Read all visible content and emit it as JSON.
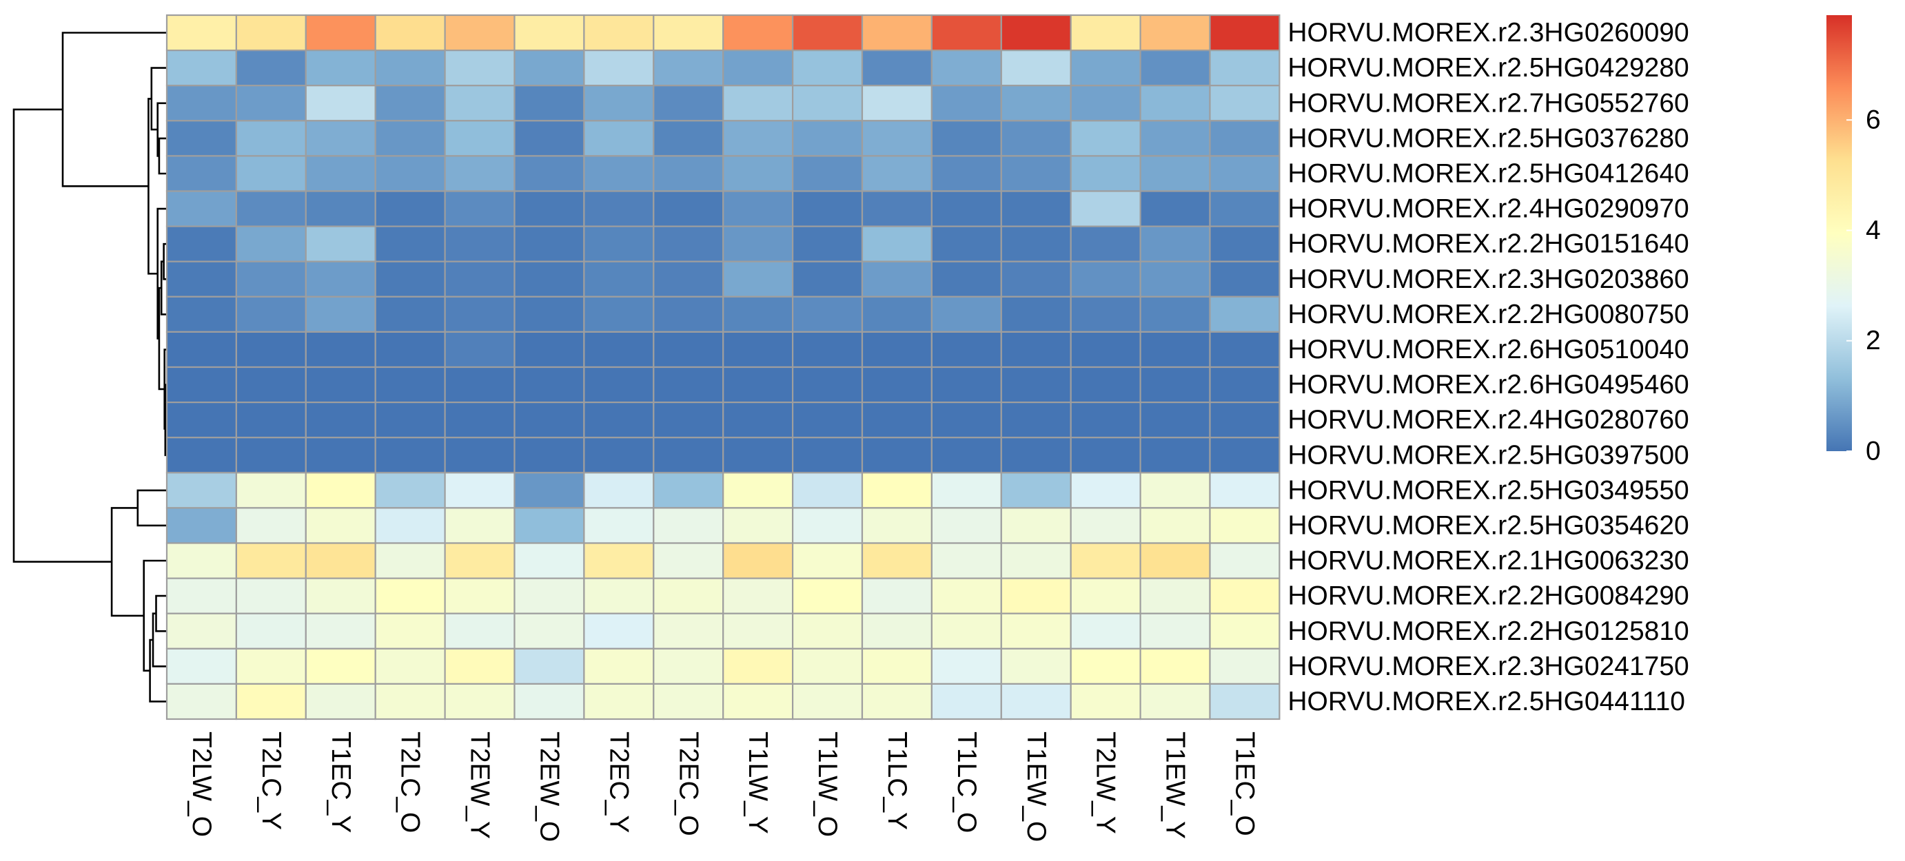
{
  "chart_data": {
    "type": "heatmap",
    "columns": [
      "T2LW_O",
      "T2LC_Y",
      "T1EC_Y",
      "T2LC_O",
      "T2EW_Y",
      "T2EW_O",
      "T2EC_Y",
      "T2EC_O",
      "T1LW_Y",
      "T1LW_O",
      "T1LC_Y",
      "T1LC_O",
      "T1EW_O",
      "T2LW_Y",
      "T1EW_Y",
      "T1EC_O"
    ],
    "rows": [
      "HORVU.MOREX.r2.3HG0260090",
      "HORVU.MOREX.r2.5HG0429280",
      "HORVU.MOREX.r2.7HG0552760",
      "HORVU.MOREX.r2.5HG0376280",
      "HORVU.MOREX.r2.5HG0412640",
      "HORVU.MOREX.r2.4HG0290970",
      "HORVU.MOREX.r2.2HG0151640",
      "HORVU.MOREX.r2.3HG0203860",
      "HORVU.MOREX.r2.2HG0080750",
      "HORVU.MOREX.r2.6HG0510040",
      "HORVU.MOREX.r2.6HG0495460",
      "HORVU.MOREX.r2.4HG0280760",
      "HORVU.MOREX.r2.5HG0397500",
      "HORVU.MOREX.r2.5HG0349550",
      "HORVU.MOREX.r2.5HG0354620",
      "HORVU.MOREX.r2.1HG0063230",
      "HORVU.MOREX.r2.2HG0084290",
      "HORVU.MOREX.r2.2HG0125810",
      "HORVU.MOREX.r2.3HG0241750",
      "HORVU.MOREX.r2.5HG0441110"
    ],
    "values": [
      [
        4.6,
        5.1,
        6.5,
        5.3,
        5.8,
        4.7,
        5.0,
        4.7,
        6.5,
        7.3,
        6.0,
        7.4,
        7.8,
        4.8,
        5.8,
        7.8
      ],
      [
        1.4,
        0.4,
        1.1,
        0.9,
        1.7,
        0.9,
        1.9,
        1.0,
        0.8,
        1.4,
        0.4,
        1.0,
        2.0,
        0.9,
        0.5,
        1.5
      ],
      [
        0.6,
        0.7,
        2.1,
        0.6,
        1.5,
        0.3,
        0.9,
        0.4,
        1.6,
        1.5,
        2.1,
        0.7,
        0.9,
        0.8,
        1.2,
        1.6
      ],
      [
        0.3,
        1.2,
        1.0,
        0.6,
        1.3,
        0.2,
        1.2,
        0.3,
        1.0,
        0.8,
        1.0,
        0.3,
        0.5,
        1.4,
        0.8,
        0.6
      ],
      [
        0.5,
        1.2,
        0.8,
        0.7,
        1.0,
        0.4,
        0.7,
        0.6,
        0.9,
        0.5,
        1.0,
        0.4,
        0.5,
        1.2,
        0.9,
        0.8
      ],
      [
        0.8,
        0.4,
        0.3,
        0.1,
        0.4,
        0.1,
        0.2,
        0.1,
        0.5,
        0.1,
        0.2,
        0.1,
        0.1,
        1.8,
        0.1,
        0.3
      ],
      [
        0.1,
        0.9,
        1.5,
        0.1,
        0.2,
        0.1,
        0.3,
        0.2,
        0.6,
        0.1,
        1.3,
        0.1,
        0.1,
        0.2,
        0.6,
        0.1
      ],
      [
        0.1,
        0.5,
        0.7,
        0.1,
        0.2,
        0.1,
        0.3,
        0.2,
        0.9,
        0.1,
        0.7,
        0.1,
        0.2,
        0.5,
        0.6,
        0.1
      ],
      [
        0.1,
        0.4,
        0.8,
        0.1,
        0.2,
        0.1,
        0.3,
        0.2,
        0.3,
        0.4,
        0.3,
        0.6,
        0.1,
        0.2,
        0.3,
        1.1
      ],
      [
        0.0,
        0.0,
        0.0,
        0.0,
        0.2,
        0.0,
        0.0,
        0.0,
        0.0,
        0.0,
        0.0,
        0.0,
        0.0,
        0.0,
        0.0,
        0.0
      ],
      [
        0.0,
        0.0,
        0.0,
        0.0,
        0.0,
        0.0,
        0.0,
        0.0,
        0.0,
        0.0,
        0.0,
        0.0,
        0.0,
        0.0,
        0.0,
        0.0
      ],
      [
        0.0,
        0.0,
        0.0,
        0.0,
        0.0,
        0.0,
        0.0,
        0.0,
        0.0,
        0.0,
        0.0,
        0.0,
        0.0,
        0.0,
        0.0,
        0.0
      ],
      [
        0.0,
        0.0,
        0.0,
        0.0,
        0.0,
        0.0,
        0.0,
        0.0,
        0.0,
        0.0,
        0.0,
        0.0,
        0.0,
        0.0,
        0.0,
        0.0
      ],
      [
        1.7,
        3.4,
        4.0,
        1.7,
        2.6,
        0.6,
        2.5,
        1.4,
        3.8,
        2.3,
        4.0,
        2.8,
        1.5,
        2.6,
        3.4,
        2.6
      ],
      [
        1.0,
        3.0,
        3.5,
        2.5,
        3.4,
        1.3,
        2.8,
        3.0,
        3.4,
        2.8,
        3.4,
        3.0,
        3.4,
        3.1,
        3.5,
        3.7
      ],
      [
        3.4,
        4.9,
        5.1,
        3.2,
        4.8,
        2.8,
        4.7,
        3.1,
        5.3,
        3.6,
        4.9,
        3.1,
        3.2,
        4.8,
        5.2,
        3.0
      ],
      [
        3.0,
        3.0,
        3.4,
        3.9,
        3.6,
        3.1,
        3.4,
        3.5,
        3.3,
        3.9,
        3.0,
        3.6,
        4.1,
        3.6,
        3.2,
        4.1
      ],
      [
        3.3,
        2.9,
        3.0,
        3.6,
        2.9,
        3.1,
        2.6,
        3.3,
        3.3,
        3.5,
        3.2,
        3.5,
        3.6,
        2.8,
        3.0,
        3.7
      ],
      [
        2.8,
        3.6,
        3.9,
        3.5,
        4.1,
        2.2,
        3.6,
        3.4,
        4.2,
        3.5,
        3.7,
        2.7,
        3.4,
        3.9,
        4.0,
        3.1
      ],
      [
        3.1,
        4.1,
        3.2,
        3.5,
        3.5,
        2.9,
        3.5,
        3.4,
        3.6,
        3.4,
        3.5,
        2.5,
        2.5,
        3.6,
        3.4,
        2.2
      ]
    ],
    "legend": {
      "ticks": [
        0,
        2,
        4,
        6
      ],
      "range": [
        0,
        7.9
      ],
      "colors": [
        "#4575B4",
        "#91BFDB",
        "#E0F3F8",
        "#FFFFBF",
        "#FEE090",
        "#FC8D59",
        "#D73027"
      ]
    },
    "row_dendrogram": {
      "merges": [
        {
          "a": 10,
          "b": 11
        },
        {
          "a": 12,
          "b": "m0"
        },
        {
          "a": 9,
          "b": "m1"
        },
        {
          "a": 6,
          "b": 7
        },
        {
          "a": "m3",
          "b": 8
        },
        {
          "a": "m4",
          "b": "m2"
        },
        {
          "a": 5,
          "b": "m5"
        },
        {
          "a": 3,
          "b": 4
        },
        {
          "a": 2,
          "b": "m7"
        },
        {
          "a": 1,
          "b": "m8"
        },
        {
          "a": "m9",
          "b": "m6"
        },
        {
          "a": 0,
          "b": "m10"
        },
        {
          "a": 16,
          "b": 17
        },
        {
          "a": "m12",
          "b": 18
        },
        {
          "a": "m13",
          "b": 19
        },
        {
          "a": 15,
          "b": "m14"
        },
        {
          "a": 13,
          "b": 14
        },
        {
          "a": "m16",
          "b": "m15"
        },
        {
          "a": "m11",
          "b": "m17"
        }
      ],
      "heights": [
        0.05,
        0.1,
        0.15,
        0.2,
        0.35,
        0.5,
        0.6,
        0.5,
        0.6,
        1.0,
        1.2,
        6.8,
        0.7,
        0.9,
        1.1,
        1.5,
        1.9,
        3.6,
        10.0
      ]
    }
  }
}
